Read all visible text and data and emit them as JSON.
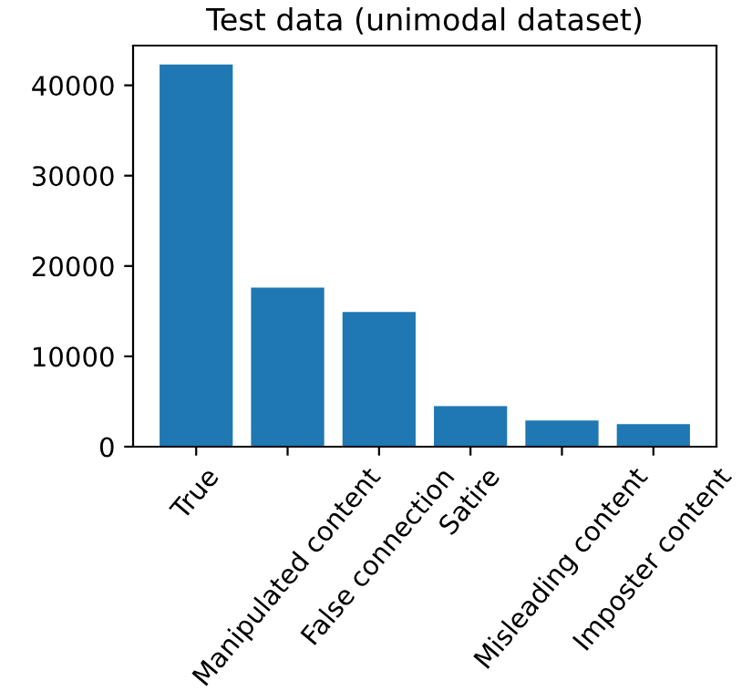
{
  "chart_data": {
    "type": "bar",
    "title": "Test data (unimodal dataset)",
    "categories": [
      "True",
      "Manipulated content",
      "False connection",
      "Satire",
      "Misleading content",
      "Imposter content"
    ],
    "values": [
      42300,
      17600,
      14900,
      4500,
      2900,
      2500
    ],
    "color": "#1f77b4",
    "ylim": [
      0,
      44400
    ],
    "yticks": [
      0,
      10000,
      20000,
      30000,
      40000
    ],
    "grid": false
  }
}
